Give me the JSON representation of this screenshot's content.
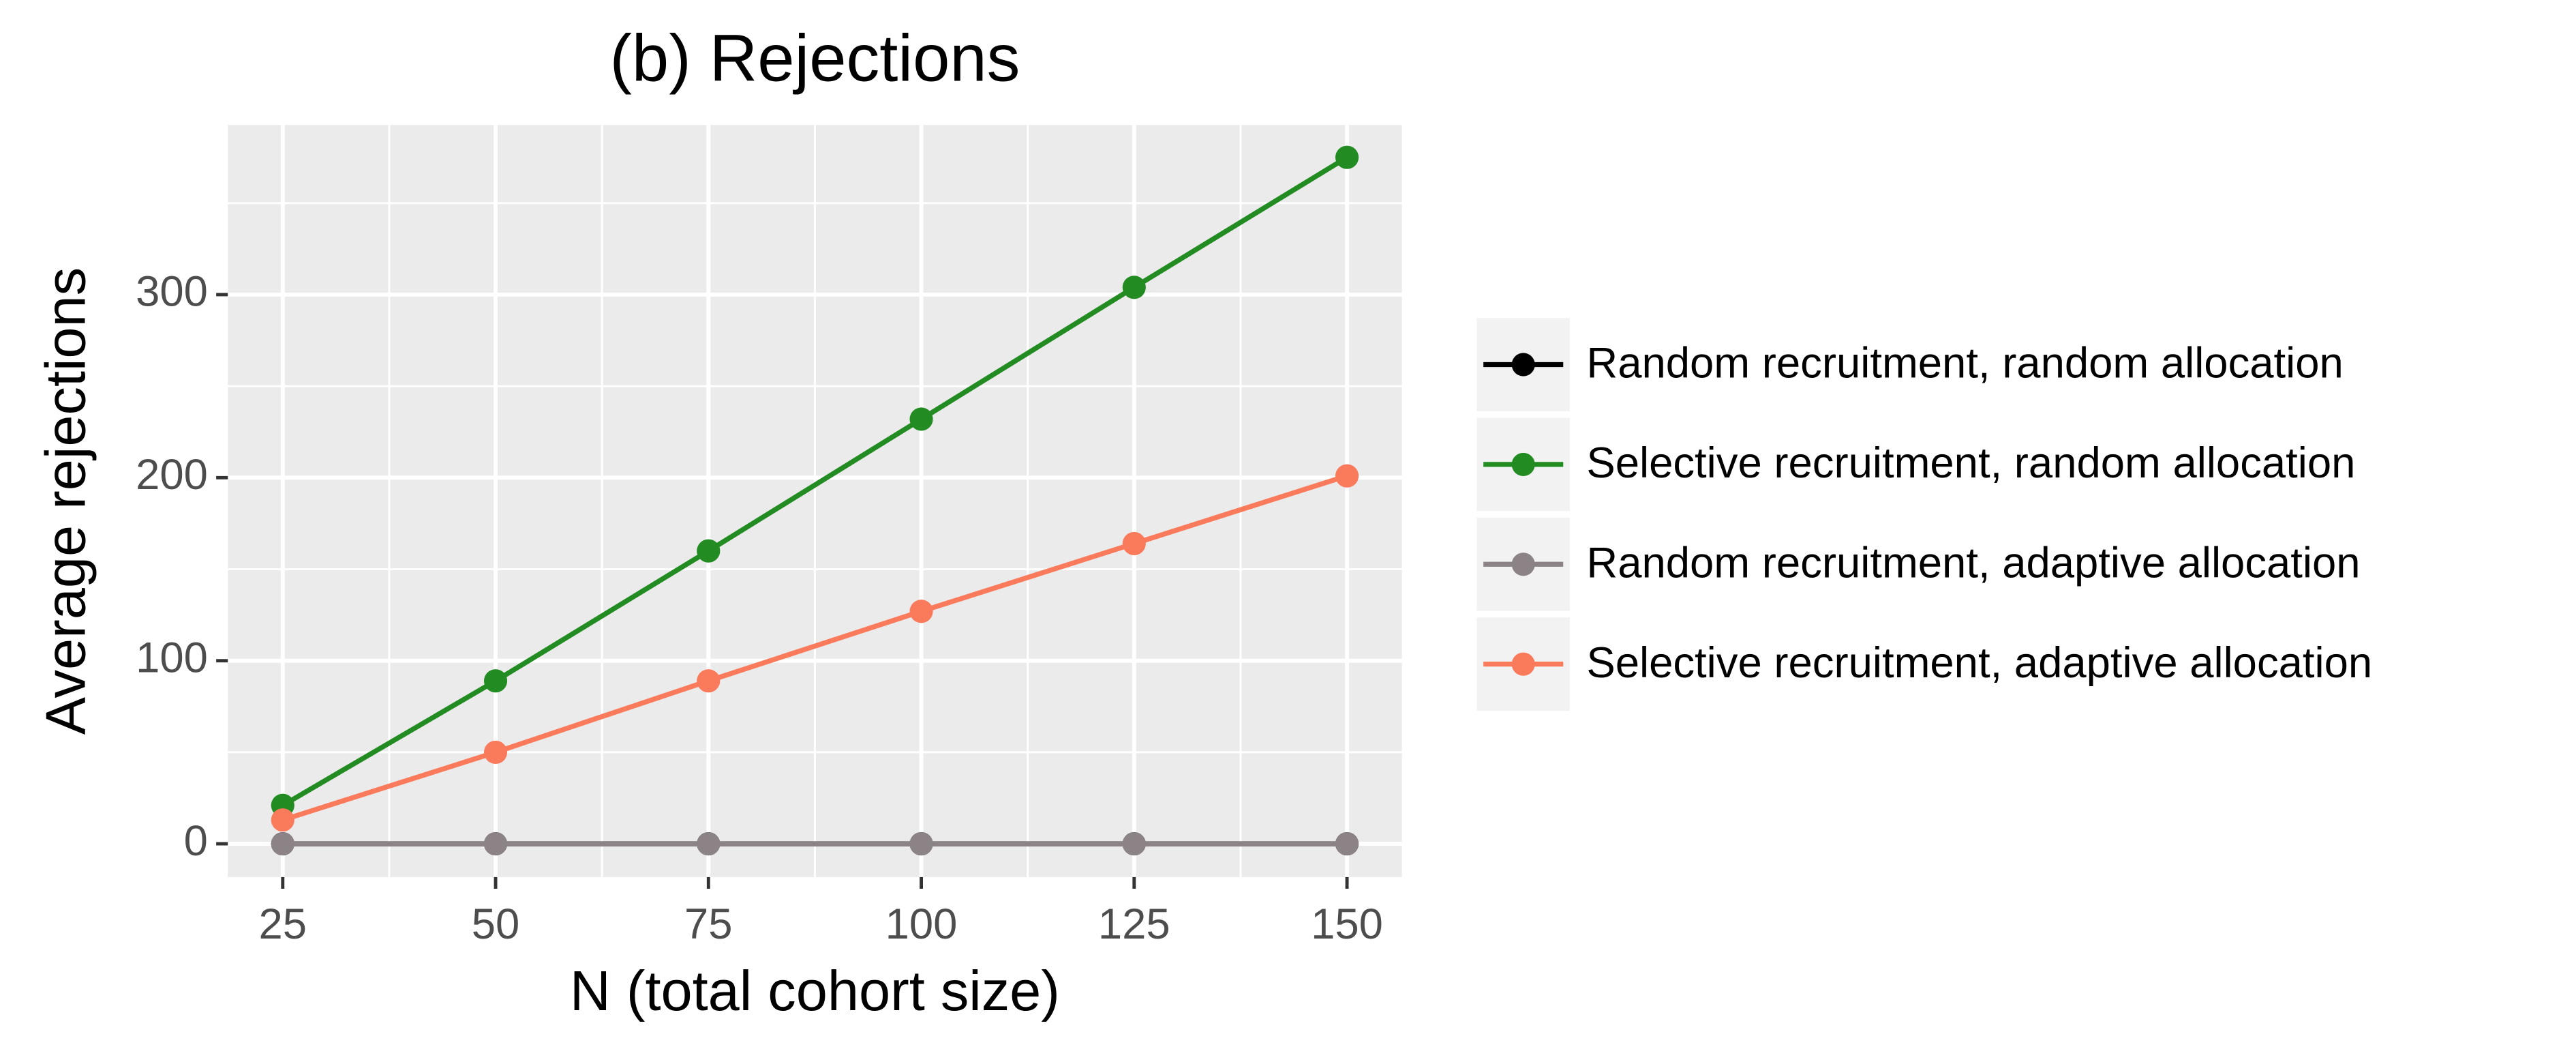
{
  "chart_data": {
    "type": "line",
    "title": "(b) Rejections",
    "x_label": "N (total cohort size)",
    "y_label": "Average rejections",
    "x": [
      25,
      50,
      75,
      100,
      125,
      150
    ],
    "xlim": [
      18.55,
      156.45
    ],
    "xticks": [
      25,
      50,
      75,
      100,
      125,
      150
    ],
    "ylim": [
      -18.2,
      392.7
    ],
    "yticks": [
      0,
      100,
      200,
      300
    ],
    "grid": true,
    "legend_position": "right",
    "series": [
      {
        "name": "Random recruitment, random allocation",
        "color": "#000000",
        "values": [
          0,
          0,
          0,
          0,
          0,
          0
        ]
      },
      {
        "name": "Selective recruitment, random allocation",
        "color": "#228b22",
        "values": [
          21,
          89,
          160,
          232,
          304,
          375
        ]
      },
      {
        "name": "Random recruitment, adaptive allocation",
        "color": "#8b8385",
        "values": [
          0,
          0,
          0,
          0,
          0,
          0
        ]
      },
      {
        "name": "Selective recruitment, adaptive allocation",
        "color": "#fa7a5c",
        "values": [
          13,
          50,
          89,
          127,
          164,
          201
        ]
      }
    ]
  }
}
